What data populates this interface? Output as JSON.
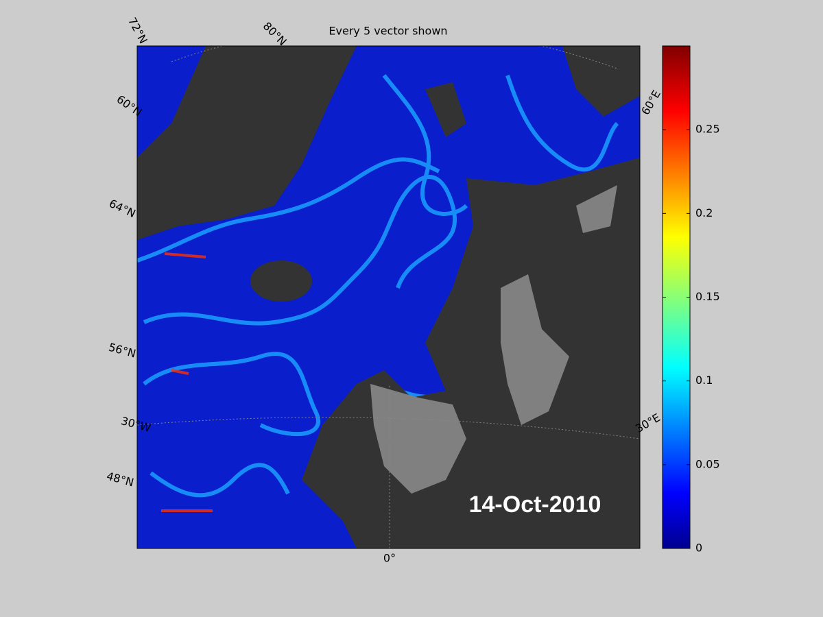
{
  "title": "Every 5 vector shown",
  "date_label": "14-Oct-2010",
  "graticule_labels": [
    "72°N",
    "80°N",
    "60°N",
    "64°N",
    "56°N",
    "30°W",
    "48°N",
    "0°",
    "30°E",
    "60°E"
  ],
  "colorbar": {
    "lim": [
      0,
      0.3
    ],
    "ticks": [
      0,
      0.05,
      0.1,
      0.15,
      0.2,
      0.25
    ]
  }
}
